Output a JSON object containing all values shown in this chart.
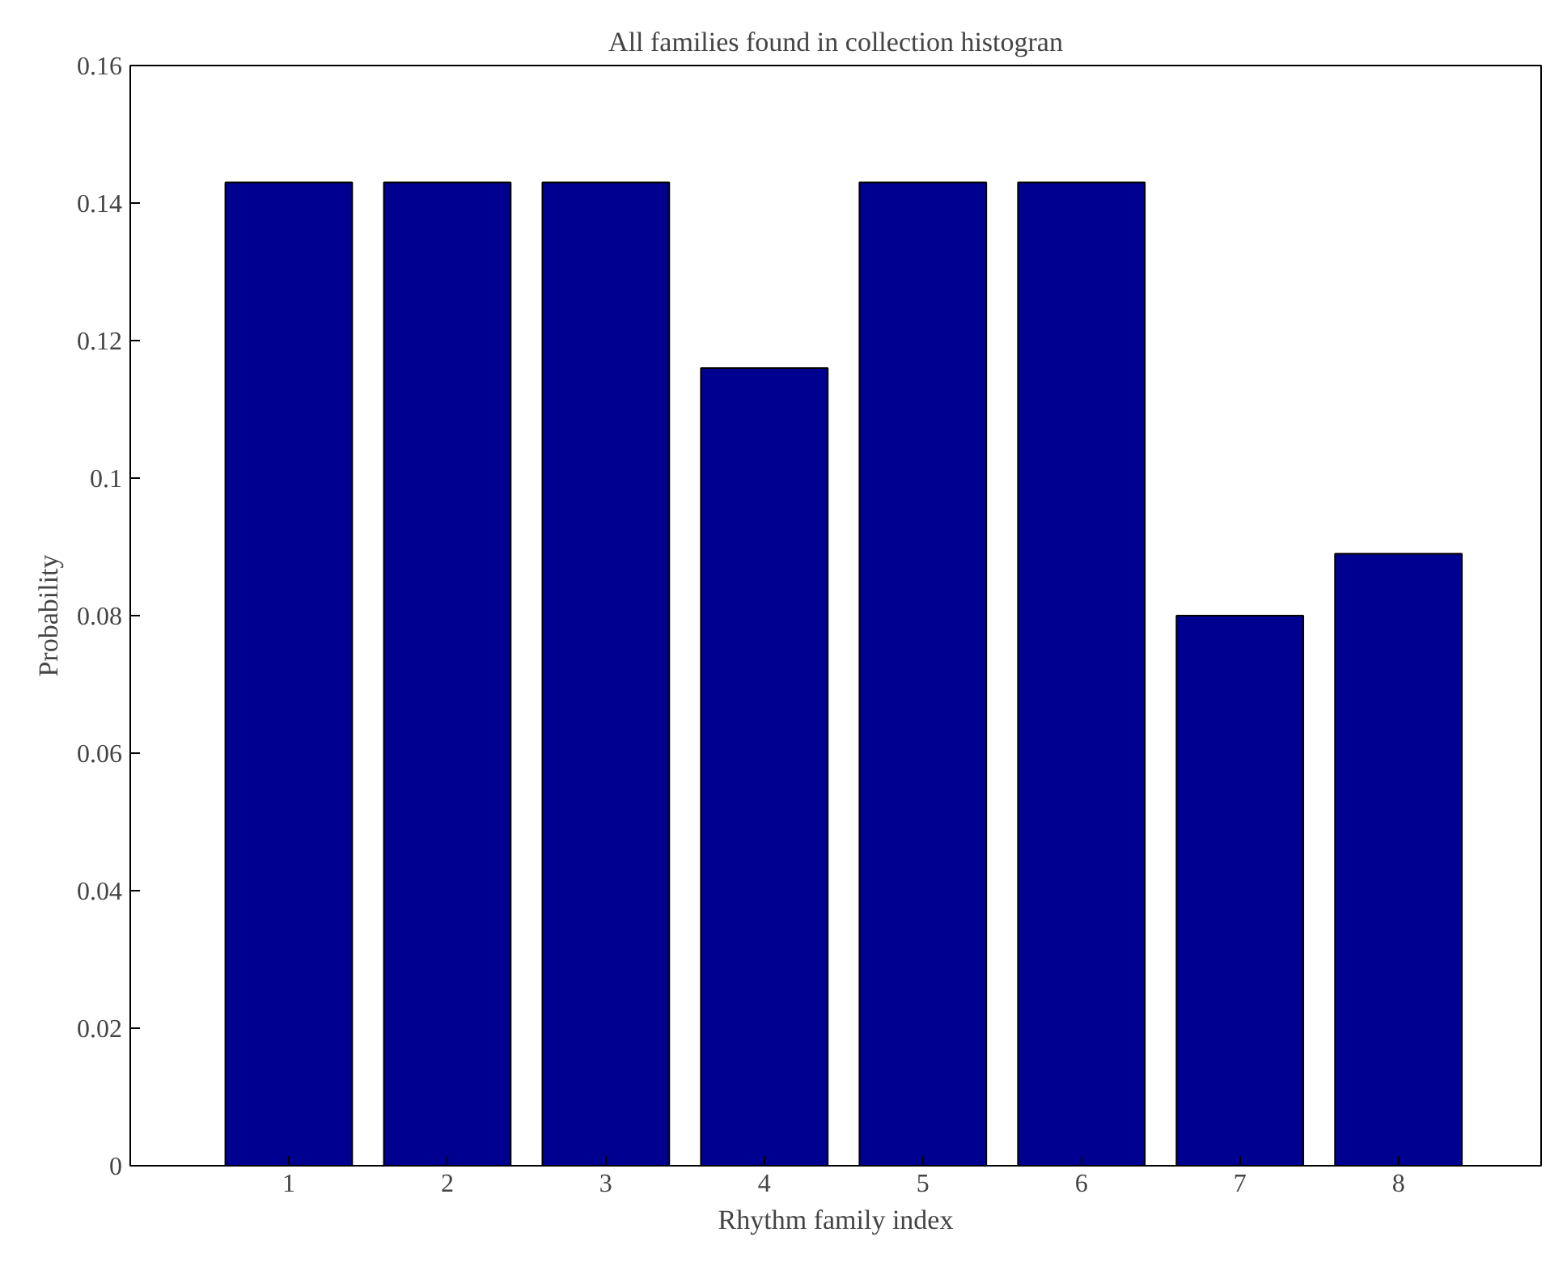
{
  "chart_data": {
    "type": "bar",
    "title": "All families found in collection histogran",
    "xlabel": "Rhythm family index",
    "ylabel": "Probability",
    "categories": [
      "1",
      "2",
      "3",
      "4",
      "5",
      "6",
      "7",
      "8"
    ],
    "values": [
      0.143,
      0.143,
      0.143,
      0.116,
      0.143,
      0.143,
      0.08,
      0.089
    ],
    "color": "#000090",
    "ylim": [
      0,
      0.16
    ],
    "yticks": [
      0,
      0.02,
      0.04,
      0.06,
      0.08,
      0.1,
      0.12,
      0.14,
      0.16
    ],
    "grid": false
  }
}
